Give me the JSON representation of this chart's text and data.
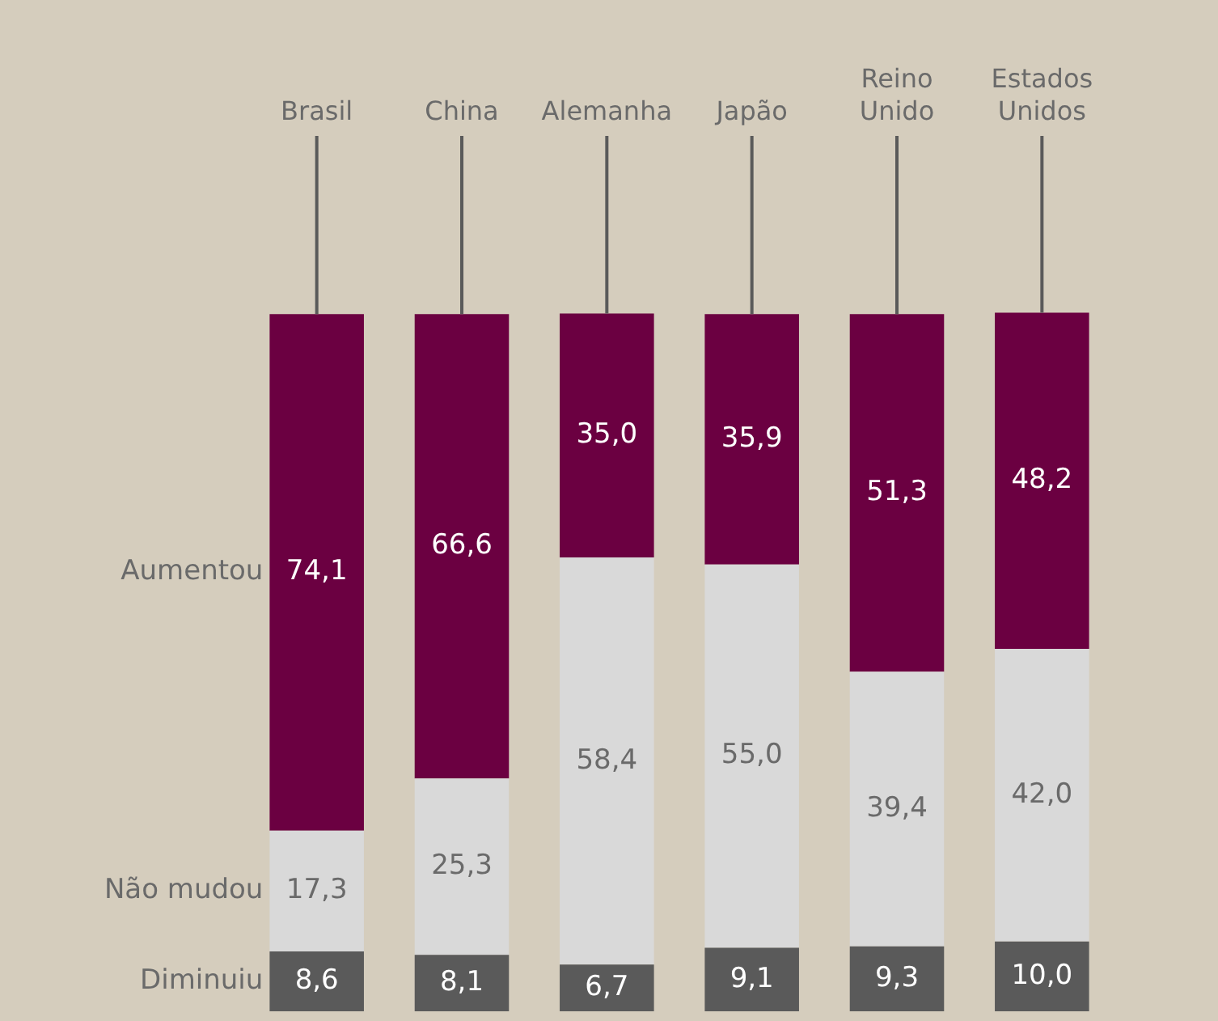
{
  "chart_data": {
    "type": "bar",
    "stacked": true,
    "legend": false,
    "tick_labels": "x",
    "categories": [
      "Brasil",
      "China",
      "Alemanha",
      "Japão",
      "Reino Unido",
      "Estados Unidos"
    ],
    "series": [
      {
        "name": "Diminuiu",
        "color": "#5a5a5a",
        "values": [
          8.6,
          8.1,
          6.7,
          9.1,
          9.3,
          10.0
        ],
        "value_labels": [
          "8,6",
          "8,1",
          "6,7",
          "9,1",
          "9,3",
          "10,0"
        ]
      },
      {
        "name": "Não mudou",
        "color": "#d9d9d9",
        "values": [
          17.3,
          25.3,
          58.4,
          55.0,
          39.4,
          42.0
        ],
        "value_labels": [
          "17,3",
          "25,3",
          "58,4",
          "55,0",
          "39,4",
          "42,0"
        ]
      },
      {
        "name": "Aumentou",
        "color": "#6b0041",
        "values": [
          74.1,
          66.6,
          35.0,
          35.9,
          51.3,
          48.2
        ],
        "value_labels": [
          "74,1",
          "66,6",
          "35,0",
          "35,9",
          "51,3",
          "48,2"
        ]
      }
    ]
  }
}
